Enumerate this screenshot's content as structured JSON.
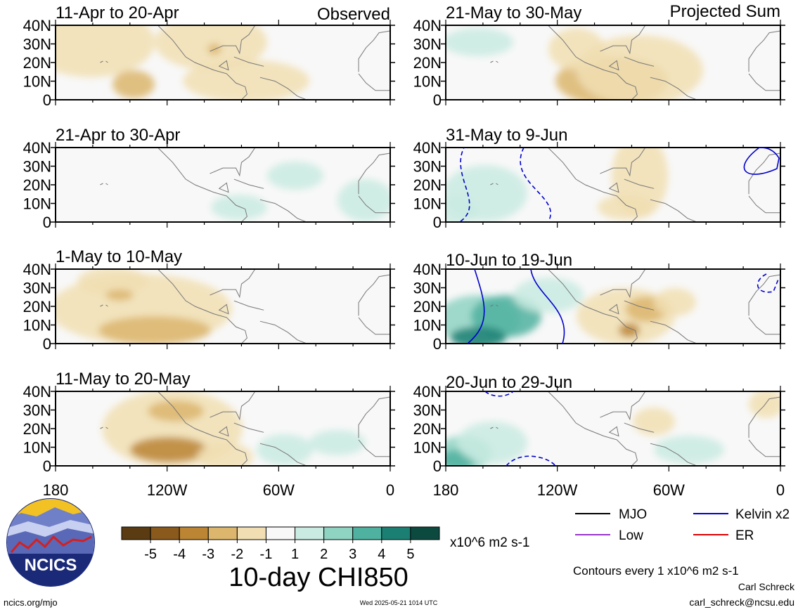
{
  "panels": {
    "observed": [
      {
        "title": "11-Apr to 20-Apr"
      },
      {
        "title": "21-Apr to 30-Apr"
      },
      {
        "title": "1-May to 10-May"
      },
      {
        "title": "11-May to 20-May"
      }
    ],
    "projected": [
      {
        "title": "21-May to 30-May"
      },
      {
        "title": "31-May to 9-Jun"
      },
      {
        "title": "10-Jun to 19-Jun"
      },
      {
        "title": "20-Jun to 29-Jun"
      }
    ],
    "observed_label": "Observed",
    "projected_label": "Projected Sum"
  },
  "chart_data": {
    "type": "heatmap",
    "title": "10-day CHI850",
    "units": "x10^6 m2 s-1",
    "y_tick_labels": [
      "40N",
      "30N",
      "20N",
      "10N",
      "0"
    ],
    "x_tick_labels": [
      "180",
      "120W",
      "60W",
      "0"
    ],
    "lon_range": [
      -180,
      0
    ],
    "lat_range": [
      0,
      40
    ],
    "colorbar": {
      "labels": [
        "-5",
        "-4",
        "-3",
        "-2",
        "-1",
        "1",
        "2",
        "3",
        "4",
        "5"
      ],
      "colors": [
        "#5a3b12",
        "#8a5a1c",
        "#bb8534",
        "#dcb66d",
        "#f1dfb3",
        "#f8f8f8",
        "#c9ebe2",
        "#8fd3c3",
        "#4fb2a0",
        "#1b8073",
        "#0c4a40"
      ]
    },
    "contour_note": "Contours every 1 x10^6 m2 s-1",
    "legend": [
      {
        "name": "MJO",
        "color": "#000000"
      },
      {
        "name": "Kelvin x2",
        "color": "#0000cc"
      },
      {
        "name": "Low",
        "color": "#9933cc"
      },
      {
        "name": "ER",
        "color": "#dd0000"
      }
    ]
  },
  "footer": {
    "logo_text": "NCICS",
    "url": "ncics.org/mjo",
    "timestamp": "Wed 2025-05-21 1014 UTC",
    "author": "Carl Schreck",
    "email": "carl_schreck@ncsu.edu"
  }
}
